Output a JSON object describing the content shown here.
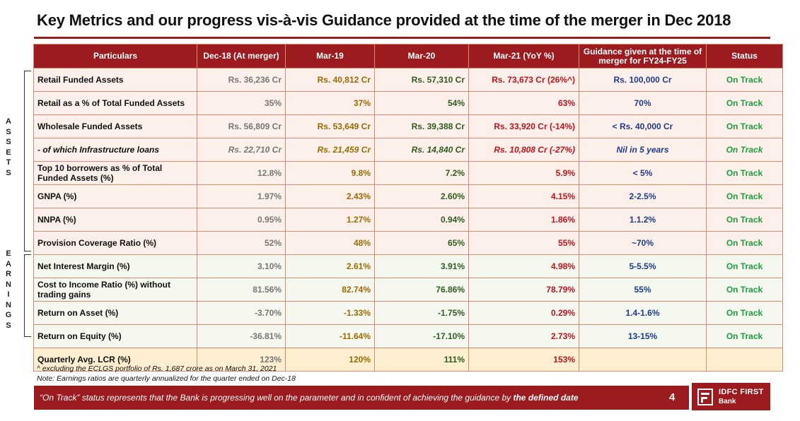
{
  "title": "Key Metrics and our progress vis-à-vis Guidance provided at the time of the merger in Dec 2018",
  "side_labels": {
    "assets": [
      "A",
      "S",
      "S",
      "E",
      "T",
      "S"
    ],
    "earnings": [
      "E",
      "A",
      "R",
      "N",
      "I",
      "N",
      "G",
      "S"
    ]
  },
  "table": {
    "headers": {
      "particulars": "Particulars",
      "dec18": "Dec-18 (At merger)",
      "mar19": "Mar-19",
      "mar20": "Mar-20",
      "mar21": "Mar-21 (YoY %)",
      "guidance": "Guidance given at the time of merger for FY24-FY25",
      "status": "Status"
    },
    "rows": [
      {
        "particular": "Retail Funded Assets",
        "dec18": "Rs. 36,236 Cr",
        "mar19": "Rs. 40,812 Cr",
        "mar20": "Rs. 57,310 Cr",
        "mar21": "Rs. 73,673 Cr (26%^)",
        "guidance": "Rs. 100,000 Cr",
        "status": "On Track"
      },
      {
        "particular": "Retail as a % of Total Funded Assets",
        "dec18": "35%",
        "mar19": "37%",
        "mar20": "54%",
        "mar21": "63%",
        "guidance": "70%",
        "status": "On Track"
      },
      {
        "particular": "Wholesale Funded Assets",
        "dec18": "Rs. 56,809 Cr",
        "mar19": "Rs. 53,649 Cr",
        "mar20": "Rs. 39,388 Cr",
        "mar21": "Rs. 33,920 Cr (-14%)",
        "guidance": "< Rs. 40,000 Cr",
        "status": "On Track"
      },
      {
        "particular": " - of which Infrastructure loans",
        "dec18": "Rs. 22,710 Cr",
        "mar19": "Rs. 21,459 Cr",
        "mar20": "Rs. 14,840 Cr",
        "mar21": "Rs. 10,808 Cr (-27%)",
        "guidance": "Nil in 5 years",
        "status": "On Track"
      },
      {
        "particular": "Top 10 borrowers as % of Total Funded Assets (%)",
        "dec18": "12.8%",
        "mar19": "9.8%",
        "mar20": "7.2%",
        "mar21": "5.9%",
        "guidance": "< 5%",
        "status": "On Track"
      },
      {
        "particular": "GNPA (%)",
        "dec18": "1.97%",
        "mar19": "2.43%",
        "mar20": "2.60%",
        "mar21": "4.15%",
        "guidance": "2-2.5%",
        "status": "On Track"
      },
      {
        "particular": "NNPA (%)",
        "dec18": "0.95%",
        "mar19": "1.27%",
        "mar20": "0.94%",
        "mar21": "1.86%",
        "guidance": "1.1.2%",
        "status": "On Track"
      },
      {
        "particular": "Provision Coverage Ratio (%)",
        "dec18": "52%",
        "mar19": "48%",
        "mar20": "65%",
        "mar21": "55%",
        "guidance": "~70%",
        "status": "On Track"
      },
      {
        "particular": "Net Interest Margin (%)",
        "dec18": "3.10%",
        "mar19": "2.61%",
        "mar20": "3.91%",
        "mar21": "4.98%",
        "guidance": "5-5.5%",
        "status": "On Track"
      },
      {
        "particular": "Cost to Income Ratio (%) without trading gains",
        "dec18": "81.56%",
        "mar19": "82.74%",
        "mar20": "76.86%",
        "mar21": "78.79%",
        "guidance": "55%",
        "status": "On Track"
      },
      {
        "particular": "Return on Asset (%)",
        "dec18": "-3.70%",
        "mar19": "-1.33%",
        "mar20": "-1.75%",
        "mar21": "0.29%",
        "guidance": "1.4-1.6%",
        "status": "On Track"
      },
      {
        "particular": "Return on Equity (%)",
        "dec18": "-36.81%",
        "mar19": "-11.64%",
        "mar20": "-17.10%",
        "mar21": "2.73%",
        "guidance": "13-15%",
        "status": "On Track"
      },
      {
        "particular": "Quarterly Avg. LCR (%)",
        "dec18": "123%",
        "mar19": "120%",
        "mar20": "111%",
        "mar21": "153%",
        "guidance": "",
        "status": ""
      }
    ]
  },
  "footnotes": {
    "line1": "^ excluding the ECLGS portfolio of Rs. 1,687 crore as on March 31, 2021",
    "line2": "Note: Earnings ratios are quarterly annualized for the quarter ended on Dec-18"
  },
  "footer": {
    "text": "“On Track” status represents that the Bank is progressing well on the parameter and in confident of achieving the guidance by ",
    "text_bold": "the defined date",
    "page_number": "4"
  },
  "logo": {
    "line1": "IDFC FIRST",
    "line2": "Bank"
  },
  "colors": {
    "brand": "#9b1b1f",
    "dec18": "#777777",
    "mar19": "#9c6a00",
    "mar20": "#2e5c1f",
    "mar21": "#c4121a",
    "guidance": "#1e3c8c",
    "status": "#1e9e3e"
  }
}
